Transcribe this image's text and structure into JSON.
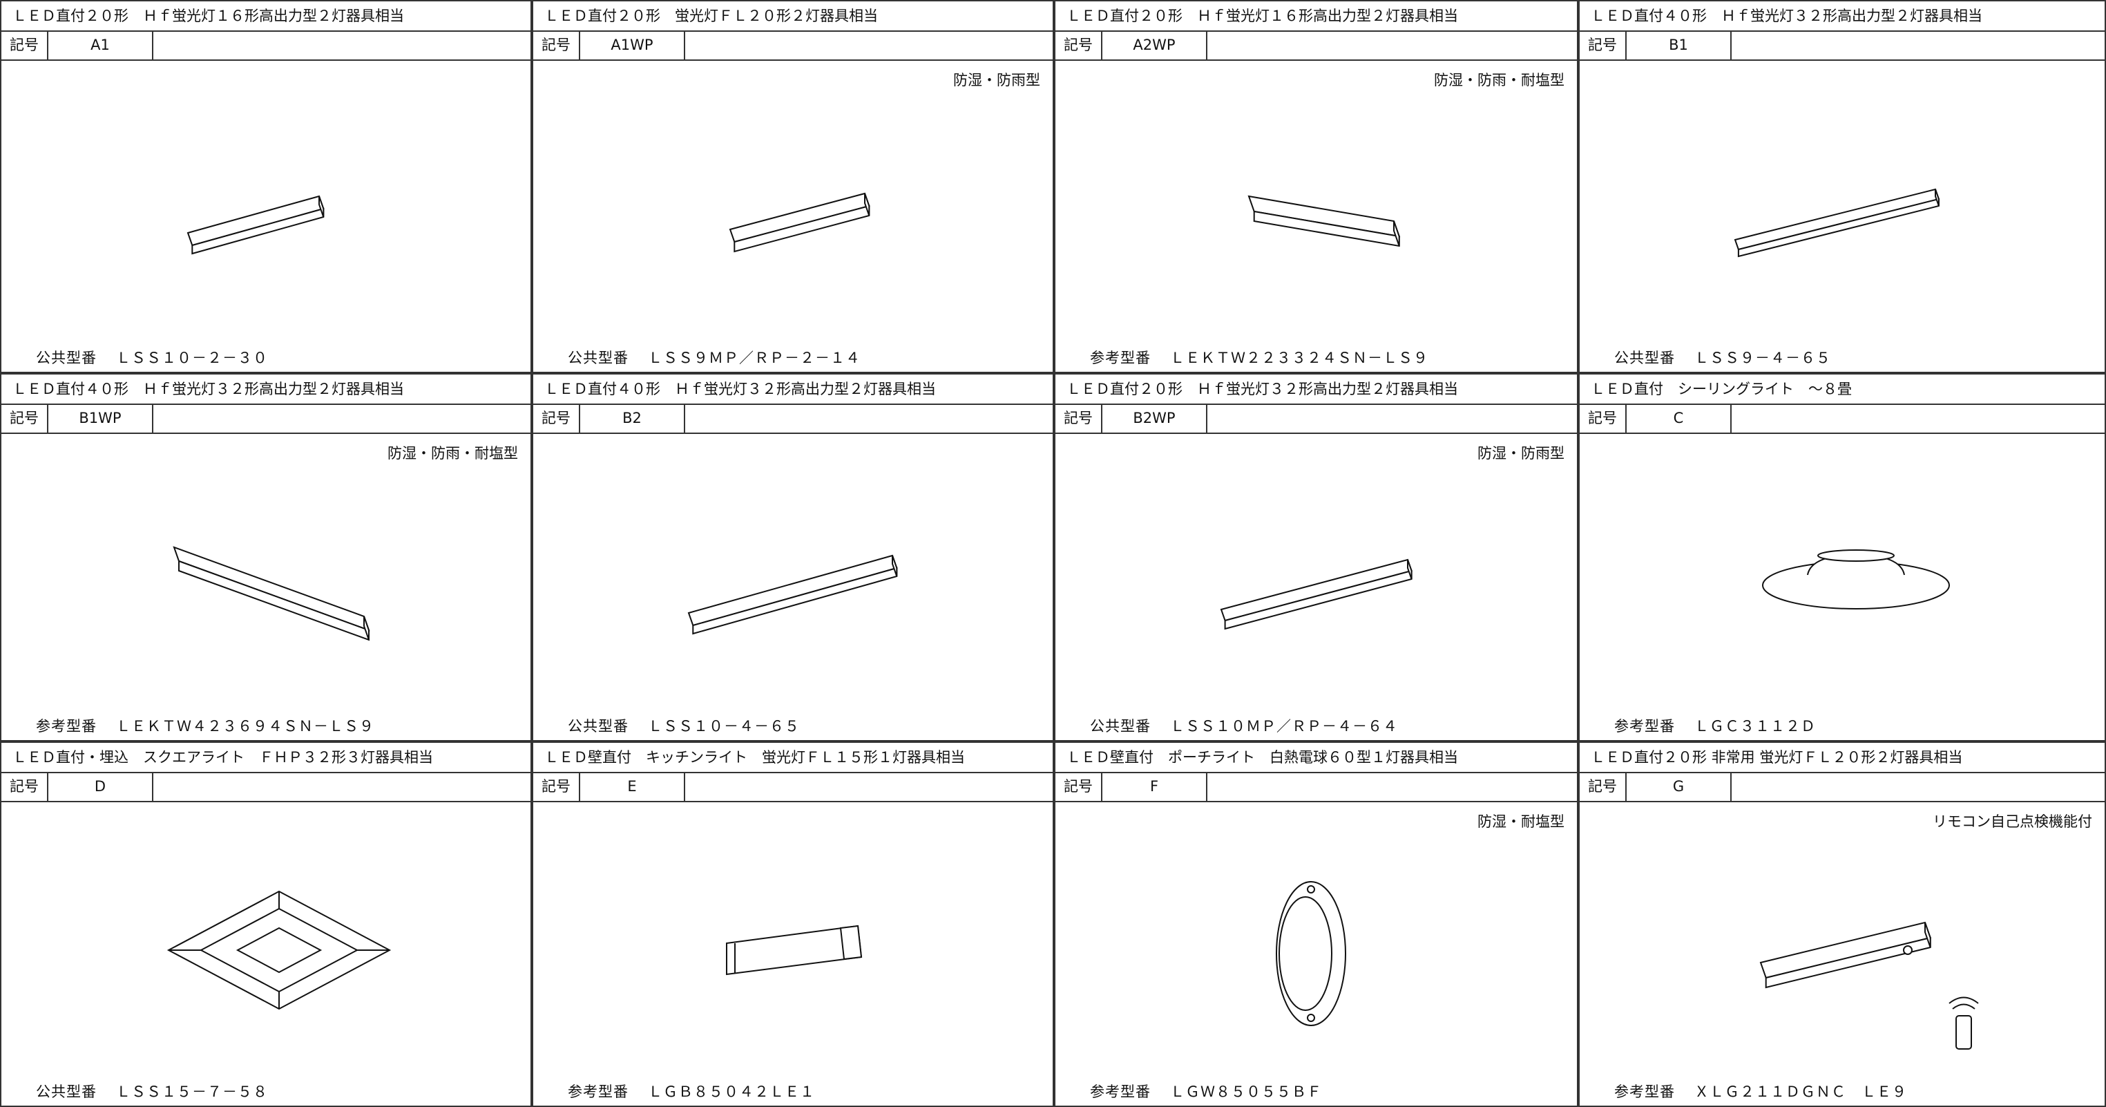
{
  "symbol_label": "記号",
  "cells": [
    {
      "title": "ＬＥＤ直付２０形　Ｈｆ蛍光灯１６形高出力型２灯器具相当",
      "code": "A1",
      "model_label": "公共型番",
      "model": "ＬＳＳ１０－２－３０"
    },
    {
      "title": "ＬＥＤ直付２０形　蛍光灯ＦＬ２０形２灯器具相当",
      "code": "A1WP",
      "note": "防湿・防雨型",
      "model_label": "公共型番",
      "model": "ＬＳＳ９ＭＰ／ＲＰ－２－１４"
    },
    {
      "title": "ＬＥＤ直付２０形　Ｈｆ蛍光灯１６形高出力型２灯器具相当",
      "code": "A2WP",
      "note": "防湿・防雨・耐塩型",
      "model_label": "参考型番",
      "model": "ＬＥＫＴＷ２２３３２４ＳＮ－ＬＳ９"
    },
    {
      "title": "ＬＥＤ直付４０形　Ｈｆ蛍光灯３２形高出力型２灯器具相当",
      "code": "B1",
      "model_label": "公共型番",
      "model": "ＬＳＳ９－４－６５"
    },
    {
      "title": "ＬＥＤ直付４０形　Ｈｆ蛍光灯３２形高出力型２灯器具相当",
      "code": "B1WP",
      "note": "防湿・防雨・耐塩型",
      "model_label": "参考型番",
      "model": "ＬＥＫＴＷ４２３６９４ＳＮ－ＬＳ９"
    },
    {
      "title": "ＬＥＤ直付４０形　Ｈｆ蛍光灯３２形高出力型２灯器具相当",
      "code": "B2",
      "model_label": "公共型番",
      "model": "ＬＳＳ１０－４－６５"
    },
    {
      "title": "ＬＥＤ直付２０形　Ｈｆ蛍光灯３２形高出力型２灯器具相当",
      "code": "B2WP",
      "note": "防湿・防雨型",
      "model_label": "公共型番",
      "model": "ＬＳＳ１０ＭＰ／ＲＰ－４－６４"
    },
    {
      "title": "ＬＥＤ直付　シーリングライト　～８畳",
      "code": "C",
      "model_label": "参考型番",
      "model": "ＬＧＣ３１１２Ｄ"
    },
    {
      "title": "ＬＥＤ直付・埋込　スクエアライト　ＦＨＰ３２形３灯器具相当",
      "code": "D",
      "model_label": "公共型番",
      "model": "ＬＳＳ１５－７－５８"
    },
    {
      "title": "ＬＥＤ壁直付　キッチンライト　蛍光灯ＦＬ１５形１灯器具相当",
      "code": "E",
      "model_label": "参考型番",
      "model": "ＬＧＢ８５０４２ＬＥ１"
    },
    {
      "title": "ＬＥＤ壁直付　ポーチライト　白熱電球６０型１灯器具相当",
      "code": "F",
      "note": "防湿・耐塩型",
      "model_label": "参考型番",
      "model": "ＬＧＷ８５０５５ＢＦ"
    },
    {
      "title": "ＬＥＤ直付２０形 非常用 蛍光灯ＦＬ２０形２灯器具相当",
      "code": "G",
      "note": "リモコン自己点検機能付",
      "model_label": "参考型番",
      "model": "ＸＬＧ２１１ＤＧＮＣ　ＬＥ９"
    }
  ]
}
